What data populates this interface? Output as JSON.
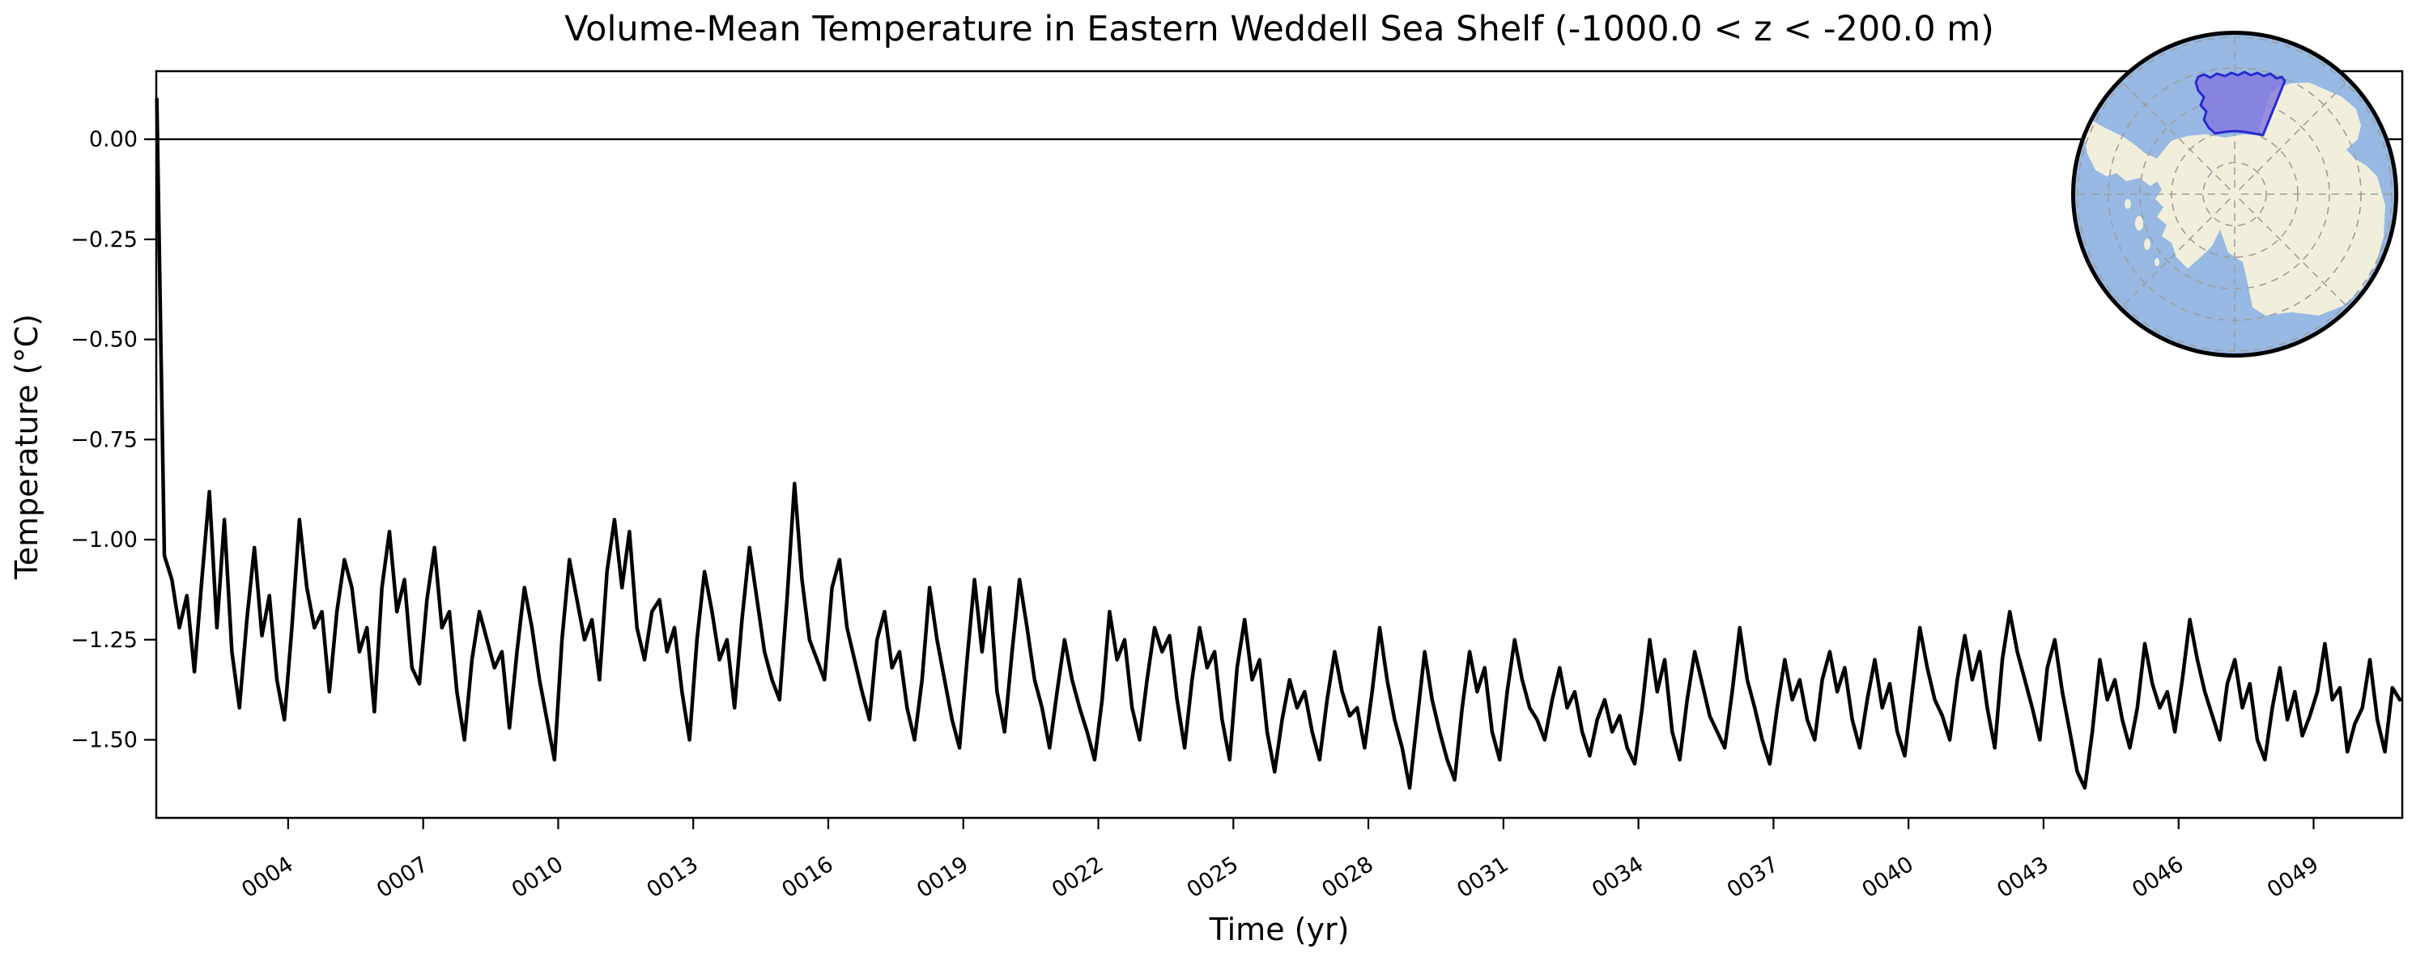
{
  "figure": {
    "title": "Volume-Mean Temperature in Eastern Weddell Sea Shelf (-1000.0 < z < -200.0 m)",
    "xlabel": "Time (yr)",
    "ylabel": "Temperature (°C)"
  },
  "chart_data": {
    "type": "line",
    "title": "Volume-Mean Temperature in Eastern Weddell Sea Shelf (-1000.0 < z < -200.0 m)",
    "xlabel": "Time (yr)",
    "ylabel": "Temperature (°C)",
    "xlim": [
      1.07,
      50.97
    ],
    "ylim": [
      -1.695,
      0.17
    ],
    "grid": false,
    "zero_line": 0.0,
    "line_color": "#000000",
    "line_width": 4.5,
    "xticks": [
      4,
      7,
      10,
      13,
      16,
      19,
      22,
      25,
      28,
      31,
      34,
      37,
      40,
      43,
      46,
      49
    ],
    "xtick_labels": [
      "0004",
      "0007",
      "0010",
      "0013",
      "0016",
      "0019",
      "0022",
      "0025",
      "0028",
      "0031",
      "0034",
      "0037",
      "0040",
      "0043",
      "0046",
      "0049"
    ],
    "xtick_rotation_deg": -33,
    "yticks": [
      0.0,
      -0.25,
      -0.5,
      -0.75,
      -1.0,
      -1.25,
      -1.5
    ],
    "ytick_labels": [
      "0.00",
      "−0.25",
      "−0.50",
      "−0.75",
      "−1.00",
      "−1.25",
      "−1.50"
    ],
    "series": [
      {
        "name": "volume-mean temperature",
        "x_start": 1.0833,
        "dt": 0.1666667,
        "values": [
          0.1,
          -1.04,
          -1.1,
          -1.22,
          -1.14,
          -1.33,
          -1.1,
          -0.88,
          -1.22,
          -0.95,
          -1.28,
          -1.42,
          -1.2,
          -1.02,
          -1.24,
          -1.14,
          -1.35,
          -1.45,
          -1.22,
          -0.95,
          -1.12,
          -1.22,
          -1.18,
          -1.38,
          -1.18,
          -1.05,
          -1.12,
          -1.28,
          -1.22,
          -1.43,
          -1.12,
          -0.98,
          -1.18,
          -1.1,
          -1.32,
          -1.36,
          -1.15,
          -1.02,
          -1.22,
          -1.18,
          -1.38,
          -1.5,
          -1.3,
          -1.18,
          -1.25,
          -1.32,
          -1.28,
          -1.47,
          -1.28,
          -1.12,
          -1.22,
          -1.35,
          -1.45,
          -1.55,
          -1.25,
          -1.05,
          -1.15,
          -1.25,
          -1.2,
          -1.35,
          -1.08,
          -0.95,
          -1.12,
          -0.98,
          -1.22,
          -1.3,
          -1.18,
          -1.15,
          -1.28,
          -1.22,
          -1.38,
          -1.5,
          -1.25,
          -1.08,
          -1.18,
          -1.3,
          -1.25,
          -1.42,
          -1.2,
          -1.02,
          -1.15,
          -1.28,
          -1.35,
          -1.4,
          -1.15,
          -0.86,
          -1.1,
          -1.25,
          -1.3,
          -1.35,
          -1.12,
          -1.05,
          -1.22,
          -1.3,
          -1.38,
          -1.45,
          -1.25,
          -1.18,
          -1.32,
          -1.28,
          -1.42,
          -1.5,
          -1.35,
          -1.12,
          -1.25,
          -1.35,
          -1.45,
          -1.52,
          -1.3,
          -1.1,
          -1.28,
          -1.12,
          -1.38,
          -1.48,
          -1.28,
          -1.1,
          -1.22,
          -1.35,
          -1.42,
          -1.52,
          -1.38,
          -1.25,
          -1.35,
          -1.42,
          -1.48,
          -1.55,
          -1.4,
          -1.18,
          -1.3,
          -1.25,
          -1.42,
          -1.5,
          -1.35,
          -1.22,
          -1.28,
          -1.24,
          -1.4,
          -1.52,
          -1.35,
          -1.22,
          -1.32,
          -1.28,
          -1.45,
          -1.55,
          -1.32,
          -1.2,
          -1.35,
          -1.3,
          -1.48,
          -1.58,
          -1.45,
          -1.35,
          -1.42,
          -1.38,
          -1.48,
          -1.55,
          -1.4,
          -1.28,
          -1.38,
          -1.44,
          -1.42,
          -1.52,
          -1.38,
          -1.22,
          -1.35,
          -1.45,
          -1.52,
          -1.62,
          -1.45,
          -1.28,
          -1.4,
          -1.48,
          -1.55,
          -1.6,
          -1.42,
          -1.28,
          -1.38,
          -1.32,
          -1.48,
          -1.55,
          -1.38,
          -1.25,
          -1.35,
          -1.42,
          -1.45,
          -1.5,
          -1.4,
          -1.32,
          -1.42,
          -1.38,
          -1.48,
          -1.54,
          -1.45,
          -1.4,
          -1.48,
          -1.44,
          -1.52,
          -1.56,
          -1.42,
          -1.25,
          -1.38,
          -1.3,
          -1.48,
          -1.55,
          -1.4,
          -1.28,
          -1.36,
          -1.44,
          -1.48,
          -1.52,
          -1.38,
          -1.22,
          -1.35,
          -1.42,
          -1.5,
          -1.56,
          -1.42,
          -1.3,
          -1.4,
          -1.35,
          -1.45,
          -1.5,
          -1.35,
          -1.28,
          -1.38,
          -1.32,
          -1.45,
          -1.52,
          -1.4,
          -1.3,
          -1.42,
          -1.36,
          -1.48,
          -1.54,
          -1.38,
          -1.22,
          -1.32,
          -1.4,
          -1.44,
          -1.5,
          -1.35,
          -1.24,
          -1.35,
          -1.28,
          -1.42,
          -1.52,
          -1.3,
          -1.18,
          -1.28,
          -1.35,
          -1.42,
          -1.5,
          -1.32,
          -1.25,
          -1.38,
          -1.48,
          -1.58,
          -1.62,
          -1.48,
          -1.3,
          -1.4,
          -1.35,
          -1.45,
          -1.52,
          -1.42,
          -1.26,
          -1.36,
          -1.42,
          -1.38,
          -1.48,
          -1.35,
          -1.2,
          -1.3,
          -1.38,
          -1.44,
          -1.5,
          -1.36,
          -1.3,
          -1.42,
          -1.36,
          -1.5,
          -1.55,
          -1.42,
          -1.32,
          -1.45,
          -1.38,
          -1.49,
          -1.44,
          -1.38,
          -1.26,
          -1.4,
          -1.37,
          -1.53,
          -1.46,
          -1.42,
          -1.3,
          -1.45,
          -1.53,
          -1.37,
          -1.4
        ]
      }
    ]
  },
  "inset_map": {
    "name": "antarctica-south-polar-map",
    "region_label": "Eastern Weddell Sea Shelf",
    "ocean_color": "#97b9e3",
    "land_color": "#f1efdc",
    "graticule_color": "#9e9e9e",
    "region_fill": "#8377e0",
    "region_border": "#2a2ad0",
    "border_color": "#000000"
  }
}
